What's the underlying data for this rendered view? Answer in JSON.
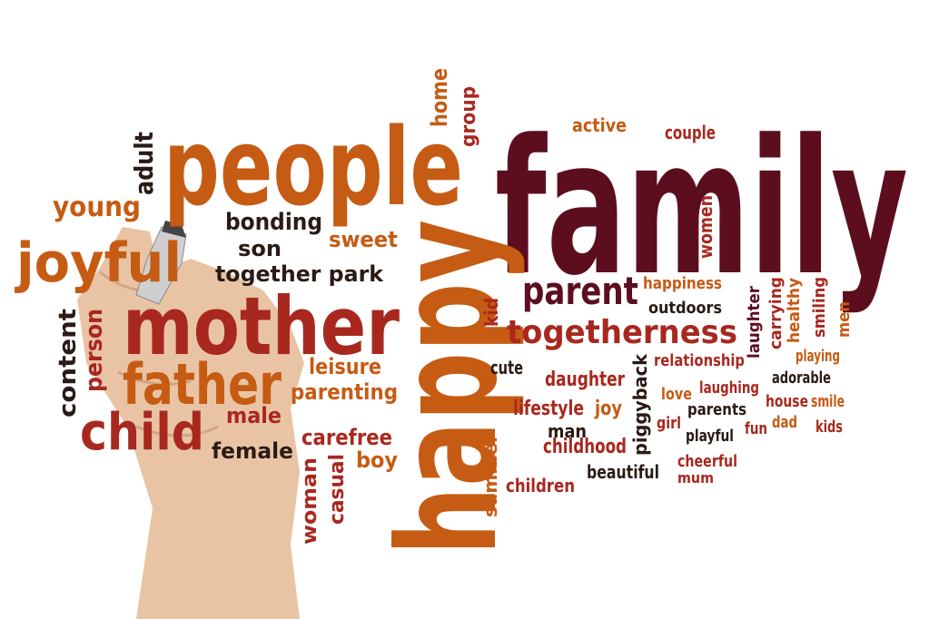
{
  "words": [
    "family",
    "people",
    "happy",
    "mother",
    "father",
    "child",
    "joyful",
    "young",
    "adult",
    "bonding",
    "son",
    "together park",
    "sweet",
    "home",
    "group",
    "active",
    "couple",
    "women",
    "parent",
    "togetherness",
    "kid",
    "happiness",
    "outdoors",
    "laughter",
    "carrying",
    "healthy",
    "smiling",
    "men",
    "relationship",
    "playing",
    "adorable",
    "laughing",
    "love",
    "house",
    "smile",
    "parents",
    "girl",
    "playful",
    "fun",
    "dad",
    "kids",
    "cheerful",
    "mum",
    "piggyback",
    "daughter",
    "cute",
    "lifestyle",
    "joy",
    "man",
    "childhood",
    "beautiful",
    "children",
    "summer",
    "leisure",
    "parenting",
    "male",
    "carefree",
    "female",
    "boy",
    "woman",
    "casual",
    "content",
    "person"
  ]
}
